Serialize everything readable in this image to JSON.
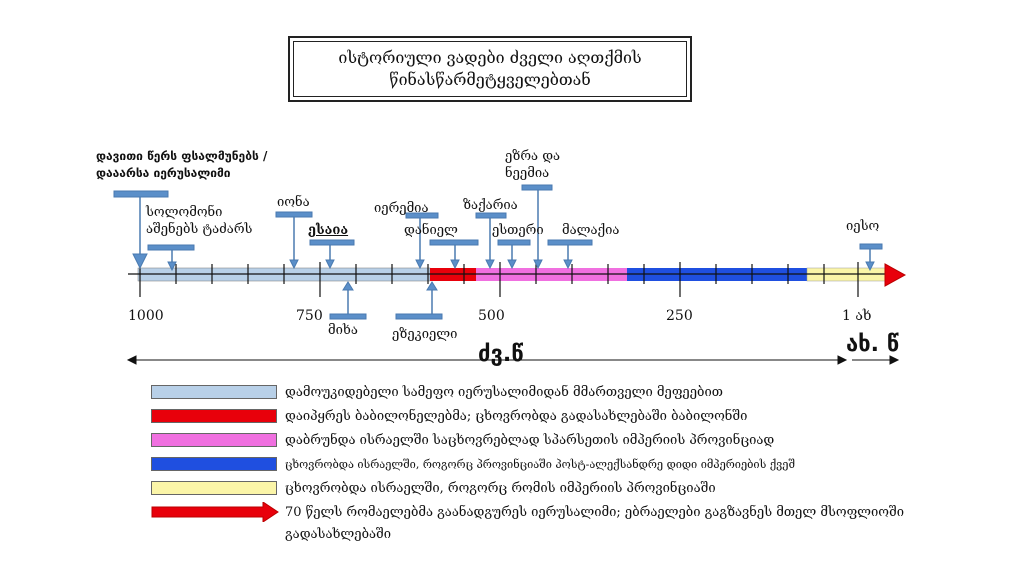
{
  "title": {
    "line1": "ისტორიული ვადები ძველი აღთქმის",
    "line2": "წინასწარმეტყველებთან"
  },
  "events_above": [
    {
      "id": "david",
      "line1": "დავითი წერს ფსალმუნებს /",
      "line2": "დააარსა იერუსალიმი"
    },
    {
      "id": "solomon",
      "line1": "სოლომონი",
      "line2": "აშენებს ტაძარს"
    },
    {
      "id": "jonah",
      "text": "იონა"
    },
    {
      "id": "isaiah",
      "text": "ესაია"
    },
    {
      "id": "jeremiah",
      "text": "იერემია"
    },
    {
      "id": "daniel",
      "text": "დანიელ"
    },
    {
      "id": "zechariah",
      "text": "ზაქარია"
    },
    {
      "id": "ezra",
      "line1": "ეზრა და",
      "line2": "ნეემია"
    },
    {
      "id": "esther",
      "text": "ესთერი"
    },
    {
      "id": "malachi",
      "text": "მალაქია"
    },
    {
      "id": "jesus",
      "text": "იესო"
    }
  ],
  "events_below": [
    {
      "id": "micah",
      "text": "მიხა"
    },
    {
      "id": "ezekiel",
      "text": "ეზეკიელი"
    }
  ],
  "ticks": [
    "1000",
    "750",
    "500",
    "250",
    "1 ახ"
  ],
  "era_bc": "ძვ.წ",
  "era_ad": "ახ. წ",
  "legend": [
    {
      "color": "#b8d0e8",
      "text": "დამოუკიდებელი სამეფო იერუსალიმიდან მმართველი მეფეებით"
    },
    {
      "color": "#e8000b",
      "text": "დაიპყრეს ბაბილონელებმა; ცხოვრობდა გადასახლებაში ბაბილონში"
    },
    {
      "color": "#f070e0",
      "text": "დაბრუნდა ისრაელში საცხოვრებლად სპარსეთის იმპერიის პროვინციად"
    },
    {
      "color": "#1f4fe0",
      "text": "ცხოვრობდა ისრაელში, როგორც პროვინციაში პოსტ-ალექსანდრე დიდი იმპერიების ქვეშ"
    },
    {
      "color": "#fbf5a8",
      "text": "ცხოვრობდა ისრაელში, როგორც რომის იმპერიის პროვინციაში"
    },
    {
      "color": "#e8000b",
      "text_line1": "70 წელს რომაელებმა გაანადგურეს იერუსალიმი; ებრაელები გაგზავნეს მთელ მსოფლიოში",
      "text_line2": "გადასახლებაში"
    }
  ]
}
